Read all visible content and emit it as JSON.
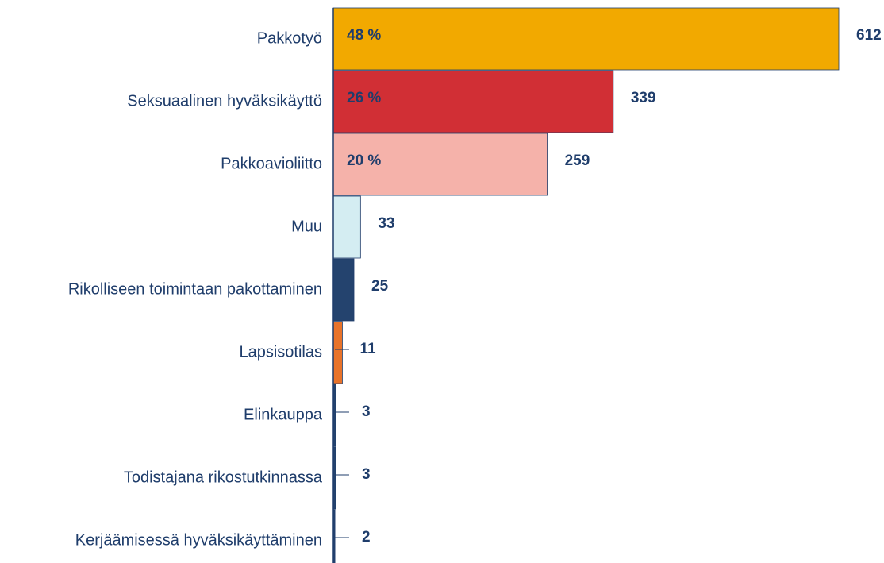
{
  "chart_data": {
    "type": "barh",
    "categories": [
      "Pakkotyö",
      "Seksuaalinen hyväksikäyttö",
      "Pakkoavioliitto",
      "Muu",
      "Rikolliseen toimintaan pakottaminen",
      "Lapsisotilas",
      "Elinkauppa",
      "Todistajana rikostutkinnassa",
      "Kerjäämisessä hyväksikäyttäminen"
    ],
    "values": [
      612,
      339,
      259,
      33,
      25,
      11,
      3,
      3,
      2
    ],
    "colors": [
      "#f2a900",
      "#d12f35",
      "#f5b2aa",
      "#d4edf2",
      "#24436e",
      "#e8732a",
      "#24436e",
      "#24436e",
      "#24436e"
    ],
    "percent_labels": [
      "48 %",
      "26 %",
      "20 %"
    ]
  }
}
